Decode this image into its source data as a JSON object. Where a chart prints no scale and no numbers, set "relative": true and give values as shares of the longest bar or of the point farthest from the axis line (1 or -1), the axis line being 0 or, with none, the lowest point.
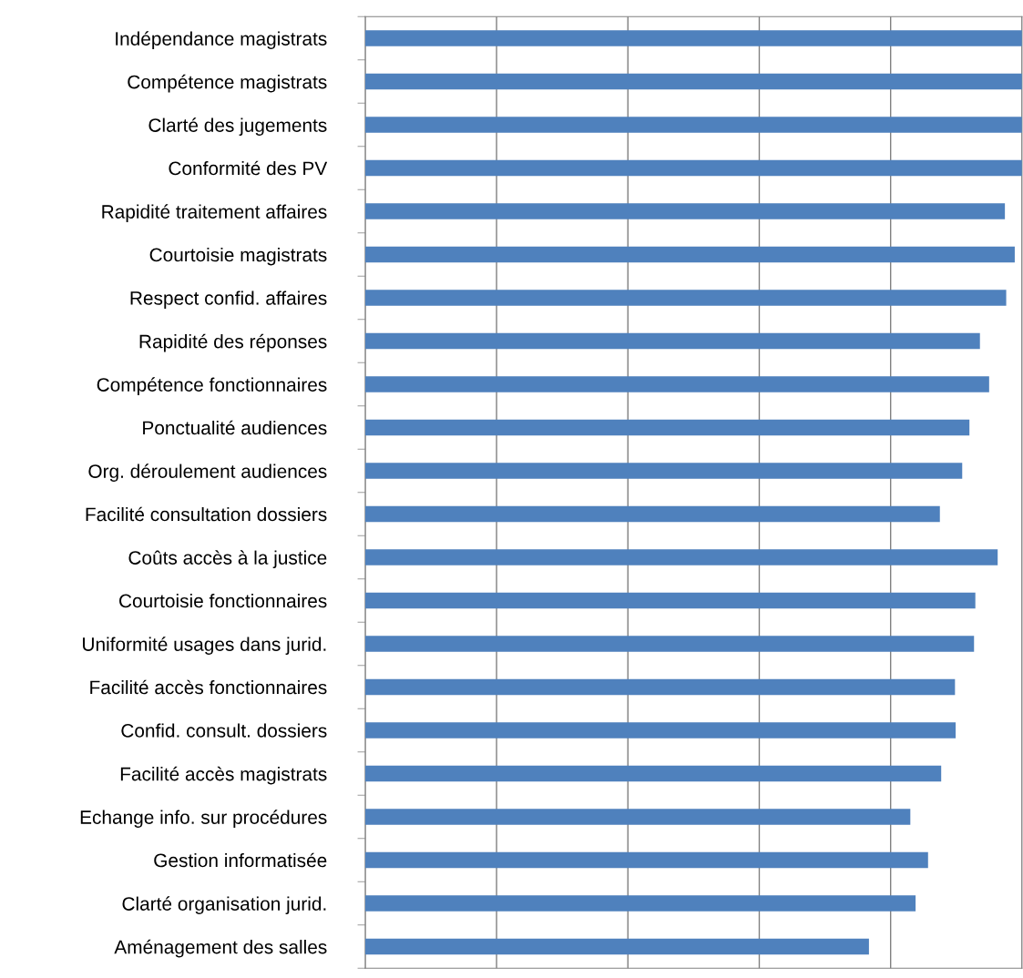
{
  "chart_data": {
    "type": "bar",
    "orientation": "horizontal",
    "relative": true,
    "grid": "x",
    "color": "#4f81bd",
    "categories": [
      "Indépendance magistrats",
      "Compétence magistrats",
      "Clarté des jugements",
      "Conformité des PV",
      "Rapidité traitement affaires",
      "Courtoisie magistrats",
      "Respect confid. affaires",
      "Rapidité des réponses",
      "Compétence fonctionnaires",
      "Ponctualité audiences",
      "Org. déroulement audiences",
      "Facilité consultation dossiers",
      "Coûts accès à la justice",
      "Courtoisie fonctionnaires",
      "Uniformité usages dans jurid.",
      "Facilité accès fonctionnaires",
      "Confid. consult. dossiers",
      "Facilité accès magistrats",
      "Echange info. sur procédures",
      "Gestion informatisée",
      "Clarté organisation jurid.",
      "Aménagement des salles"
    ],
    "values": [
      1,
      1,
      1,
      1,
      0.974,
      0.989,
      0.976,
      0.936,
      0.95,
      0.92,
      0.909,
      0.875,
      0.963,
      0.929,
      0.927,
      0.898,
      0.899,
      0.877,
      0.83,
      0.857,
      0.838,
      0.767
    ]
  }
}
